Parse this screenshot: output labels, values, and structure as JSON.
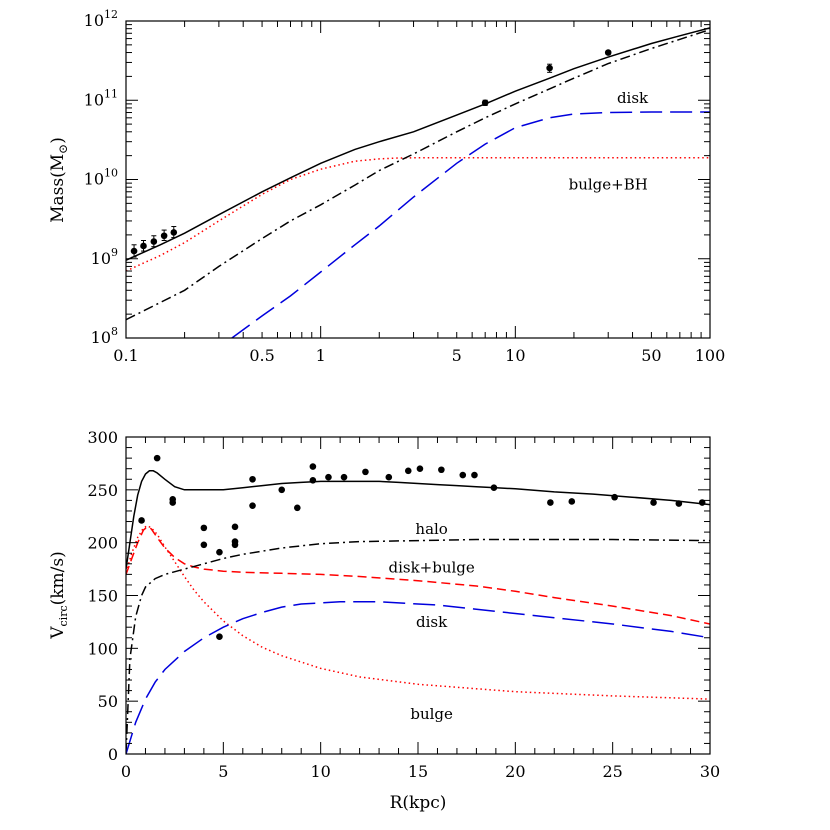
{
  "chart_data": [
    {
      "type": "line",
      "xscale": "log",
      "yscale": "log",
      "xlim": [
        0.1,
        100
      ],
      "ylim": [
        100000000.0,
        1000000000000.0
      ],
      "xlabel": "",
      "ylabel": "Mass(M⊙)",
      "ylabel_main": "Mass(M",
      "ylabel_sym": "⊙",
      "ylabel_close": ")",
      "xticks": [
        {
          "value": 0.1,
          "label": "0.1"
        },
        {
          "value": 0.5,
          "label": "0.5"
        },
        {
          "value": 1,
          "label": "1"
        },
        {
          "value": 5,
          "label": "5"
        },
        {
          "value": 10,
          "label": "10"
        },
        {
          "value": 50,
          "label": "50"
        },
        {
          "value": 100,
          "label": "100"
        }
      ],
      "yticks": [
        {
          "value": 100000000.0,
          "base": "10",
          "exp": "8"
        },
        {
          "value": 1000000000.0,
          "base": "10",
          "exp": "9"
        },
        {
          "value": 10000000000.0,
          "base": "10",
          "exp": "10"
        },
        {
          "value": 100000000000.0,
          "base": "10",
          "exp": "11"
        },
        {
          "value": 1000000000000.0,
          "base": "10",
          "exp": "12"
        }
      ],
      "annotations": [
        {
          "text": "disk",
          "x": 40,
          "y": 92000000000.0
        },
        {
          "text": "bulge+BH",
          "x": 30,
          "y": 7500000000.0
        }
      ],
      "series": [
        {
          "style": "solid",
          "color": "#000000",
          "x": [
            0.1,
            0.15,
            0.2,
            0.3,
            0.5,
            0.7,
            1,
            1.5,
            2,
            3,
            5,
            7,
            10,
            15,
            20,
            30,
            50,
            70,
            100
          ],
          "y": [
            960000000.0,
            1500000000.0,
            2100000000.0,
            3600000000.0,
            7000000000.0,
            10500000000.0,
            16000000000.0,
            24000000000.0,
            30000000000.0,
            40000000000.0,
            65000000000.0,
            90000000000.0,
            130000000000.0,
            190000000000.0,
            250000000000.0,
            350000000000.0,
            520000000000.0,
            650000000000.0,
            820000000000.0
          ]
        },
        {
          "style": "dotted",
          "color": "#ff0000",
          "x": [
            0.1,
            0.15,
            0.2,
            0.3,
            0.5,
            0.7,
            1,
            1.5,
            2,
            2.5,
            3,
            5,
            10,
            100
          ],
          "y": [
            700000000.0,
            1100000000.0,
            1600000000.0,
            3000000000.0,
            6500000000.0,
            10000000000.0,
            13500000000.0,
            17000000000.0,
            18200000000.0,
            18700000000.0,
            18800000000.0,
            18800000000.0,
            18800000000.0,
            18800000000.0
          ]
        },
        {
          "style": "dashdot",
          "color": "#000000",
          "x": [
            0.1,
            0.2,
            0.3,
            0.5,
            0.7,
            1,
            1.5,
            2,
            3,
            5,
            7,
            10,
            20,
            30,
            50,
            100
          ],
          "y": [
            170000000.0,
            400000000.0,
            800000000.0,
            1800000000.0,
            3000000000.0,
            4800000000.0,
            8500000000.0,
            13000000000.0,
            21000000000.0,
            40000000000.0,
            60000000000.0,
            90000000000.0,
            190000000000.0,
            290000000000.0,
            450000000000.0,
            780000000000.0
          ]
        },
        {
          "style": "longdash",
          "color": "#0000dd",
          "x": [
            0.35,
            0.5,
            0.7,
            1,
            1.5,
            2,
            3,
            5,
            7,
            10,
            15,
            20,
            30,
            50,
            100
          ],
          "y": [
            100000000.0,
            190000000.0,
            340000000.0,
            680000000.0,
            1500000000.0,
            2600000000.0,
            6000000000.0,
            16000000000.0,
            28000000000.0,
            45000000000.0,
            60000000000.0,
            67000000000.0,
            70000000000.0,
            71000000000.0,
            71000000000.0
          ]
        }
      ],
      "points": [
        {
          "x": 0.11,
          "y": 1250000000.0,
          "ylo": 1050000000.0,
          "yhi": 1500000000.0
        },
        {
          "x": 0.123,
          "y": 1450000000.0,
          "ylo": 1250000000.0,
          "yhi": 1700000000.0
        },
        {
          "x": 0.139,
          "y": 1650000000.0,
          "ylo": 1420000000.0,
          "yhi": 1950000000.0
        },
        {
          "x": 0.157,
          "y": 1950000000.0,
          "ylo": 1700000000.0,
          "yhi": 2300000000.0
        },
        {
          "x": 0.176,
          "y": 2150000000.0,
          "ylo": 1850000000.0,
          "yhi": 2550000000.0
        },
        {
          "x": 7.0,
          "y": 93000000000.0,
          "ylo": 86000000000.0,
          "yhi": 100000000000.0
        },
        {
          "x": 15.0,
          "y": 255000000000.0,
          "ylo": 225000000000.0,
          "yhi": 285000000000.0
        },
        {
          "x": 30.0,
          "y": 400000000000.0,
          "ylo": 380000000000.0,
          "yhi": 420000000000.0
        }
      ]
    },
    {
      "type": "line",
      "xlim": [
        0,
        30
      ],
      "ylim": [
        0,
        300
      ],
      "xlabel": "R(kpc)",
      "ylabel": "Vcirc(km/s)",
      "ylabel_main": "V",
      "ylabel_sub": "circ",
      "ylabel_rest": "(km/s)",
      "xticks": [
        0,
        5,
        10,
        15,
        20,
        25,
        30
      ],
      "yticks": [
        0,
        50,
        100,
        150,
        200,
        250,
        300
      ],
      "annotations": [
        {
          "text": "halo",
          "x": 15.7,
          "y": 208
        },
        {
          "text": "disk+bulge",
          "x": 15.7,
          "y": 172
        },
        {
          "text": "disk",
          "x": 15.7,
          "y": 120
        },
        {
          "text": "bulge",
          "x": 15.7,
          "y": 33
        }
      ],
      "series": [
        {
          "style": "solid",
          "color": "#000000",
          "x": [
            0,
            0.2,
            0.4,
            0.6,
            0.8,
            1.0,
            1.2,
            1.4,
            1.6,
            2,
            2.5,
            3,
            3.5,
            4,
            5,
            6,
            7,
            8,
            9,
            10,
            11,
            12,
            13,
            14,
            15,
            16,
            17,
            18,
            19,
            20,
            22,
            24,
            26,
            28,
            30
          ],
          "y": [
            175,
            200,
            225,
            245,
            258,
            265,
            268,
            268,
            266,
            260,
            253,
            250,
            250,
            250,
            250,
            252,
            254,
            256,
            257,
            258,
            258,
            258,
            258,
            257,
            256,
            255,
            254,
            253,
            252,
            251,
            248,
            246,
            243,
            240,
            236
          ]
        },
        {
          "style": "dashed",
          "color": "#ff0000",
          "x": [
            0,
            0.3,
            0.6,
            0.9,
            1.1,
            1.3,
            1.6,
            2,
            2.5,
            3,
            3.5,
            4,
            5,
            6,
            8,
            10,
            12,
            15,
            18,
            20,
            22,
            25,
            28,
            30
          ],
          "y": [
            170,
            185,
            200,
            212,
            215,
            213,
            205,
            195,
            186,
            180,
            177,
            175,
            173,
            172,
            171,
            170,
            168,
            164,
            159,
            154,
            148,
            140,
            131,
            123
          ]
        },
        {
          "style": "dotted",
          "color": "#ff0000",
          "x": [
            0,
            0.3,
            0.6,
            0.9,
            1.1,
            1.3,
            1.6,
            2,
            2.5,
            3,
            3.5,
            4,
            5,
            6,
            7,
            8,
            10,
            12,
            15,
            20,
            25,
            30
          ],
          "y": [
            172,
            190,
            205,
            214,
            216,
            214,
            208,
            196,
            182,
            168,
            155,
            144,
            126,
            112,
            101,
            93,
            81,
            73,
            66,
            59,
            55,
            52
          ]
        },
        {
          "style": "dashdot",
          "color": "#000000",
          "x": [
            0,
            0.2,
            0.5,
            0.8,
            1.0,
            1.5,
            2,
            3,
            4,
            5,
            6,
            8,
            10,
            12,
            15,
            18,
            20,
            25,
            30
          ],
          "y": [
            0,
            90,
            130,
            150,
            158,
            166,
            170,
            175,
            180,
            185,
            189,
            195,
            199,
            201,
            202,
            203,
            203,
            203,
            202
          ]
        },
        {
          "style": "longdash",
          "color": "#0000dd",
          "x": [
            0,
            0.5,
            1,
            1.5,
            2,
            3,
            4,
            5,
            6,
            7,
            8,
            9,
            10,
            11,
            12,
            13,
            14,
            16,
            18,
            20,
            22,
            25,
            28,
            30
          ],
          "y": [
            0,
            30,
            52,
            68,
            80,
            97,
            110,
            120,
            128,
            134,
            139,
            142,
            143,
            144,
            144,
            144,
            143,
            141,
            137,
            133,
            129,
            123,
            116,
            110
          ]
        }
      ],
      "points": [
        {
          "x": 0.8,
          "y": 221
        },
        {
          "x": 1.6,
          "y": 280
        },
        {
          "x": 2.4,
          "y": 241
        },
        {
          "x": 2.4,
          "y": 238
        },
        {
          "x": 4.0,
          "y": 214
        },
        {
          "x": 4.0,
          "y": 198
        },
        {
          "x": 4.8,
          "y": 191
        },
        {
          "x": 4.8,
          "y": 111
        },
        {
          "x": 5.6,
          "y": 215
        },
        {
          "x": 5.6,
          "y": 201
        },
        {
          "x": 5.6,
          "y": 198
        },
        {
          "x": 6.5,
          "y": 260
        },
        {
          "x": 6.5,
          "y": 235
        },
        {
          "x": 8.0,
          "y": 250
        },
        {
          "x": 8.8,
          "y": 233
        },
        {
          "x": 9.6,
          "y": 272
        },
        {
          "x": 9.6,
          "y": 259
        },
        {
          "x": 10.4,
          "y": 262
        },
        {
          "x": 11.2,
          "y": 262
        },
        {
          "x": 12.3,
          "y": 267
        },
        {
          "x": 13.5,
          "y": 262
        },
        {
          "x": 14.5,
          "y": 268
        },
        {
          "x": 15.1,
          "y": 270
        },
        {
          "x": 16.2,
          "y": 269
        },
        {
          "x": 17.3,
          "y": 264
        },
        {
          "x": 17.9,
          "y": 264
        },
        {
          "x": 18.9,
          "y": 252
        },
        {
          "x": 21.8,
          "y": 238
        },
        {
          "x": 22.9,
          "y": 239
        },
        {
          "x": 25.1,
          "y": 243
        },
        {
          "x": 27.1,
          "y": 238
        },
        {
          "x": 28.4,
          "y": 237
        },
        {
          "x": 29.6,
          "y": 238
        }
      ]
    }
  ]
}
